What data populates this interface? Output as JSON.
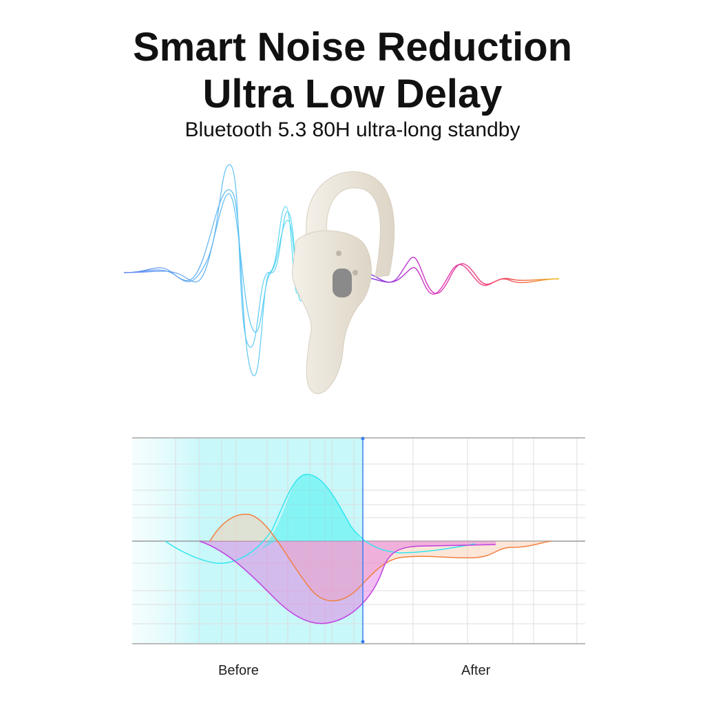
{
  "headline": {
    "line1": "Smart Noise Reduction",
    "line2": "Ultra Low Delay"
  },
  "subtitle": "Bluetooth 5.3 80H ultra-long standby",
  "comparison": {
    "before_label": "Before",
    "after_label": "After"
  },
  "colors": {
    "cyan": "#2ee6f0",
    "orange": "#f08040",
    "magenta": "#c040e0",
    "divider": "#3a7bf0",
    "earbud": "#ece6da"
  }
}
